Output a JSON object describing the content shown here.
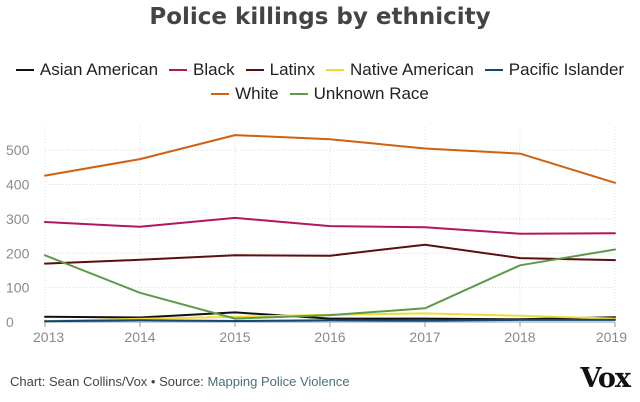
{
  "chart_data": {
    "type": "line",
    "title": "Police killings by ethnicity",
    "x": [
      2013,
      2014,
      2015,
      2016,
      2017,
      2018,
      2019
    ],
    "ylim": [
      0,
      550
    ],
    "yticks": [
      0,
      100,
      200,
      300,
      400,
      500
    ],
    "xlabel": "",
    "ylabel": "",
    "grid": true,
    "legend_position": "top-center",
    "series": [
      {
        "name": "Asian American",
        "color": "#111111",
        "values": [
          15,
          13,
          28,
          10,
          10,
          8,
          14
        ]
      },
      {
        "name": "Black",
        "color": "#b0185d",
        "values": [
          291,
          277,
          303,
          279,
          276,
          257,
          258
        ]
      },
      {
        "name": "Latinx",
        "color": "#5c0d0d",
        "values": [
          170,
          181,
          194,
          193,
          225,
          186,
          180
        ]
      },
      {
        "name": "Native American",
        "color": "#f2da3a",
        "values": [
          3,
          9,
          15,
          21,
          25,
          18,
          10
        ]
      },
      {
        "name": "Pacific Islander",
        "color": "#0a4a80",
        "values": [
          2,
          5,
          3,
          5,
          4,
          6,
          6
        ]
      },
      {
        "name": "White",
        "color": "#d1600f",
        "values": [
          426,
          474,
          544,
          532,
          505,
          490,
          405
        ]
      },
      {
        "name": "Unknown Race",
        "color": "#5e9a4a",
        "values": [
          194,
          85,
          10,
          20,
          40,
          165,
          211
        ]
      }
    ]
  },
  "footer": {
    "credit": "Chart: Sean Collins/Vox • Source: ",
    "source": "Mapping Police Violence",
    "logo": "Vox"
  }
}
